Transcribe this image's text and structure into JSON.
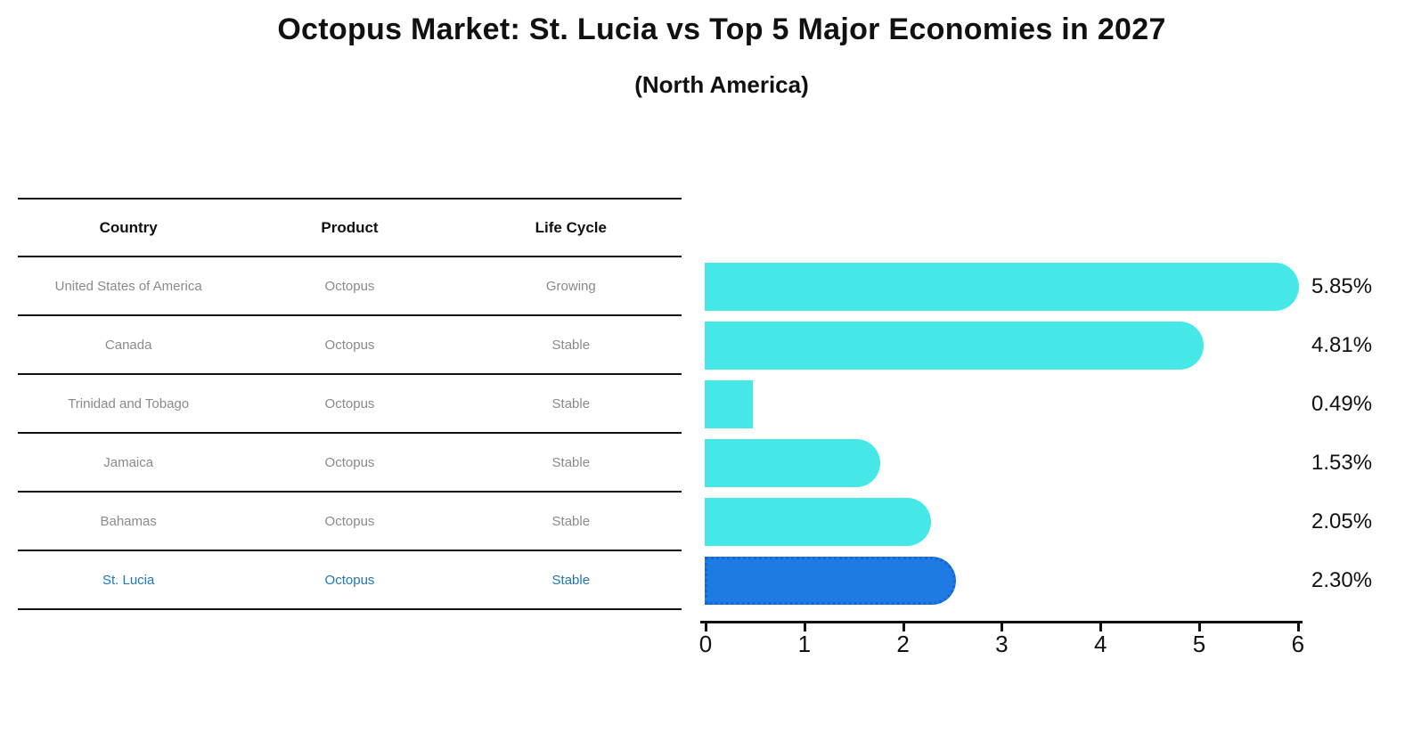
{
  "title": "Octopus Market: St. Lucia vs Top 5 Major Economies in 2027",
  "subtitle": "(North America)",
  "table": {
    "headers": [
      "Country",
      "Product",
      "Life Cycle"
    ],
    "rows": [
      {
        "country": "United States of America",
        "product": "Octopus",
        "life_cycle": "Growing"
      },
      {
        "country": "Canada",
        "product": "Octopus",
        "life_cycle": "Stable"
      },
      {
        "country": "Trinidad and Tobago",
        "product": "Octopus",
        "life_cycle": "Stable"
      },
      {
        "country": "Jamaica",
        "product": "Octopus",
        "life_cycle": "Stable"
      },
      {
        "country": "Bahamas",
        "product": "Octopus",
        "life_cycle": "Stable"
      },
      {
        "country": "St. Lucia",
        "product": "Octopus",
        "life_cycle": "Stable"
      }
    ],
    "highlight_row": 5,
    "highlight_text_color": "#1f77b4"
  },
  "chart_data": {
    "type": "bar",
    "orientation": "horizontal",
    "title": "Octopus Market: St. Lucia vs Top 5 Major Economies in 2027",
    "subtitle": "(North America)",
    "categories": [
      "United States of America",
      "Canada",
      "Trinidad and Tobago",
      "Jamaica",
      "Bahamas",
      "St. Lucia"
    ],
    "values": [
      5.85,
      4.81,
      0.49,
      1.53,
      2.05,
      2.3
    ],
    "value_labels": [
      "5.85%",
      "4.81%",
      "0.49%",
      "1.53%",
      "2.05%",
      "2.30%"
    ],
    "xlim": [
      0,
      6
    ],
    "x_ticks": [
      "0",
      "1",
      "2",
      "3",
      "4",
      "5",
      "6"
    ],
    "grid": false,
    "legend": false,
    "bar_color": "#46E7E7",
    "highlight_color": "#1E7BE3",
    "highlight_index": 5
  }
}
